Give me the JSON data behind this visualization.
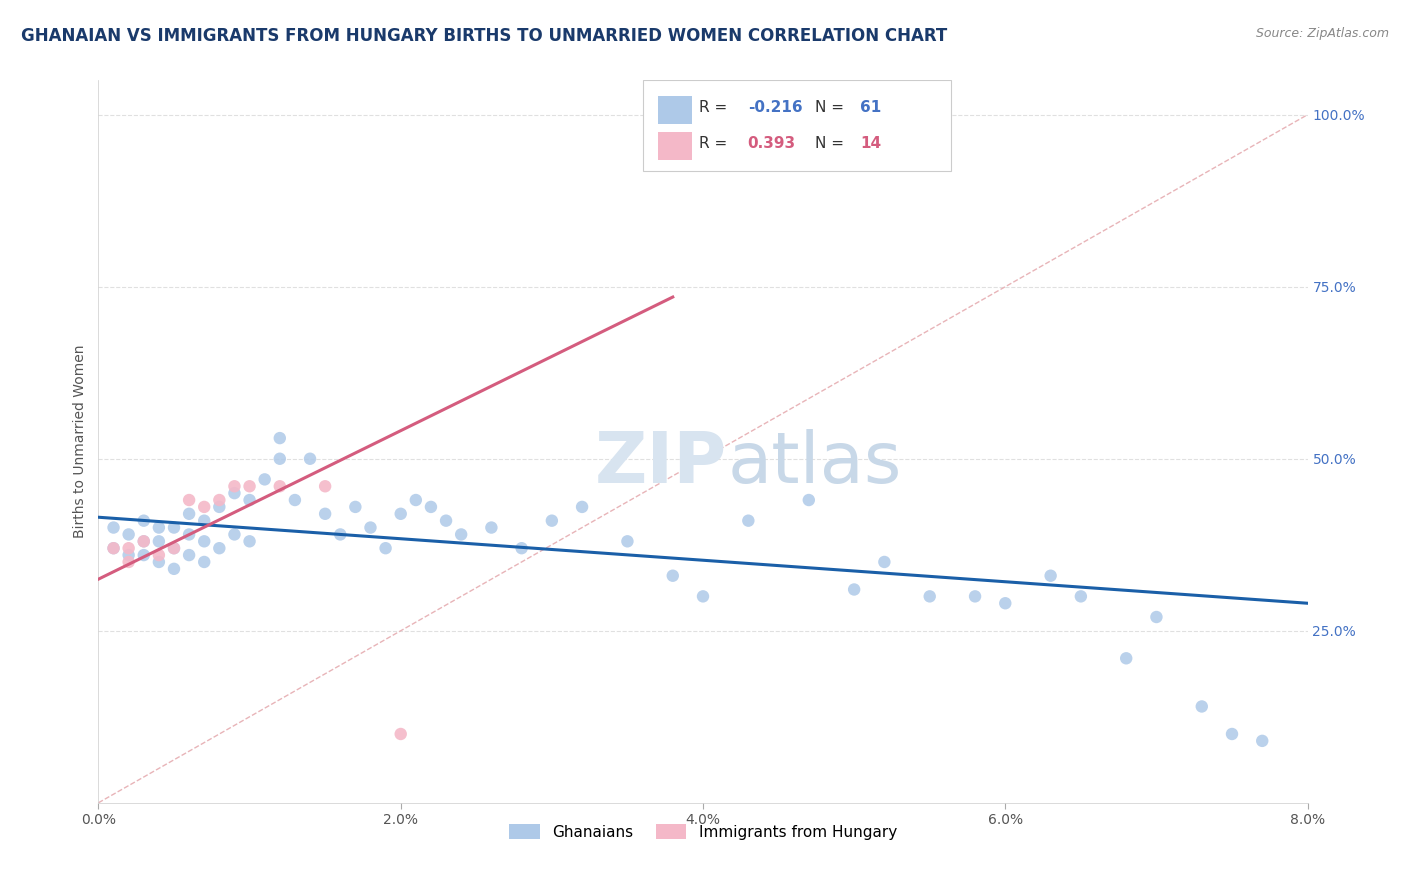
{
  "title": "GHANAIAN VS IMMIGRANTS FROM HUNGARY BIRTHS TO UNMARRIED WOMEN CORRELATION CHART",
  "source_text": "Source: ZipAtlas.com",
  "ylabel": "Births to Unmarried Women",
  "x_min": 0.0,
  "x_max": 0.08,
  "y_min": 0.0,
  "y_max": 1.05,
  "x_tick_labels": [
    "0.0%",
    "2.0%",
    "4.0%",
    "6.0%",
    "8.0%"
  ],
  "x_tick_vals": [
    0.0,
    0.02,
    0.04,
    0.06,
    0.08
  ],
  "y_tick_labels": [
    "25.0%",
    "50.0%",
    "75.0%",
    "100.0%"
  ],
  "y_tick_vals": [
    0.25,
    0.5,
    0.75,
    1.0
  ],
  "blue_scatter_x": [
    0.001,
    0.001,
    0.002,
    0.002,
    0.003,
    0.003,
    0.003,
    0.004,
    0.004,
    0.004,
    0.005,
    0.005,
    0.005,
    0.006,
    0.006,
    0.006,
    0.007,
    0.007,
    0.007,
    0.008,
    0.008,
    0.009,
    0.009,
    0.01,
    0.01,
    0.011,
    0.012,
    0.012,
    0.013,
    0.014,
    0.015,
    0.016,
    0.017,
    0.018,
    0.019,
    0.02,
    0.021,
    0.022,
    0.023,
    0.024,
    0.026,
    0.028,
    0.03,
    0.032,
    0.035,
    0.038,
    0.04,
    0.043,
    0.047,
    0.05,
    0.052,
    0.055,
    0.058,
    0.06,
    0.063,
    0.065,
    0.068,
    0.07,
    0.073,
    0.075,
    0.077
  ],
  "blue_scatter_y": [
    0.37,
    0.4,
    0.36,
    0.39,
    0.36,
    0.38,
    0.41,
    0.35,
    0.38,
    0.4,
    0.34,
    0.37,
    0.4,
    0.36,
    0.39,
    0.42,
    0.35,
    0.38,
    0.41,
    0.37,
    0.43,
    0.39,
    0.45,
    0.38,
    0.44,
    0.47,
    0.5,
    0.53,
    0.44,
    0.5,
    0.42,
    0.39,
    0.43,
    0.4,
    0.37,
    0.42,
    0.44,
    0.43,
    0.41,
    0.39,
    0.4,
    0.37,
    0.41,
    0.43,
    0.38,
    0.33,
    0.3,
    0.41,
    0.44,
    0.31,
    0.35,
    0.3,
    0.3,
    0.29,
    0.33,
    0.3,
    0.21,
    0.27,
    0.14,
    0.1,
    0.09
  ],
  "pink_scatter_x": [
    0.001,
    0.002,
    0.002,
    0.003,
    0.004,
    0.005,
    0.006,
    0.007,
    0.008,
    0.009,
    0.01,
    0.012,
    0.015,
    0.02
  ],
  "pink_scatter_y": [
    0.37,
    0.35,
    0.37,
    0.38,
    0.36,
    0.37,
    0.44,
    0.43,
    0.44,
    0.46,
    0.46,
    0.46,
    0.46,
    0.1
  ],
  "blue_line_x": [
    0.0,
    0.08
  ],
  "blue_line_y": [
    0.415,
    0.29
  ],
  "pink_line_x": [
    0.0,
    0.038
  ],
  "pink_line_y": [
    0.325,
    0.735
  ],
  "diagonal_line_x": [
    0.0,
    0.08
  ],
  "diagonal_line_y": [
    0.0,
    1.0
  ],
  "title_color": "#1a3a6b",
  "title_fontsize": 12,
  "axis_label_fontsize": 10,
  "tick_fontsize": 10,
  "blue_color": "#aec9e8",
  "pink_color": "#f4b8c8",
  "blue_line_color": "#1a5fa8",
  "pink_line_color": "#d45c7e",
  "diagonal_color": "#cccccc",
  "background_color": "#ffffff",
  "grid_color": "#e0e0e0",
  "watermark_color": "#d8e4f0",
  "source_color": "#888888",
  "ytick_color": "#4472c4",
  "legend_r1": "R = -0.216",
  "legend_n1": "N = 61",
  "legend_r2": "R =  0.393",
  "legend_n2": "N = 14"
}
